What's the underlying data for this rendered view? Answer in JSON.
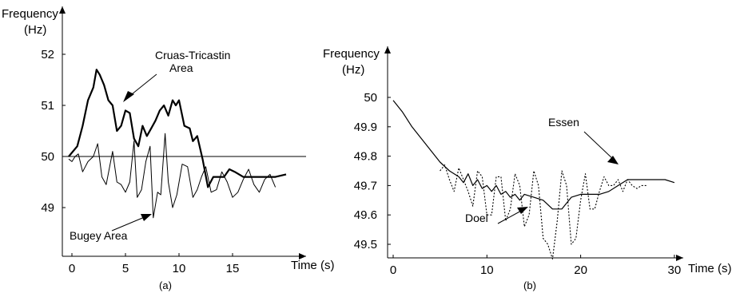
{
  "chart_data": [
    {
      "type": "line",
      "caption": "(a)",
      "ylabel": "Frequency",
      "ylabel_unit": "(Hz)",
      "xlabel": "Time (s)",
      "xticks": [
        0,
        5,
        10,
        15
      ],
      "yticks": [
        49,
        50,
        51,
        52
      ],
      "xlim": [
        -1,
        20.5
      ],
      "ylim": [
        48.0,
        52.5
      ],
      "reference_line": 50,
      "annotations": [
        {
          "text": "Cruas-Tricastin",
          "line": 1
        },
        {
          "text": "Area",
          "line": 2
        },
        {
          "text": "Bugey Area",
          "line": 1
        }
      ],
      "series": [
        {
          "style": "thick",
          "points": [
            [
              -0.3,
              50.0
            ],
            [
              0.5,
              50.2
            ],
            [
              1.0,
              50.6
            ],
            [
              1.5,
              51.1
            ],
            [
              2.0,
              51.35
            ],
            [
              2.3,
              51.7
            ],
            [
              2.6,
              51.6
            ],
            [
              3.0,
              51.4
            ],
            [
              3.4,
              51.1
            ],
            [
              3.8,
              51.0
            ],
            [
              4.2,
              50.5
            ],
            [
              4.6,
              50.6
            ],
            [
              5.0,
              50.9
            ],
            [
              5.4,
              50.85
            ],
            [
              5.8,
              50.35
            ],
            [
              6.2,
              50.2
            ],
            [
              6.6,
              50.6
            ],
            [
              7.0,
              50.4
            ],
            [
              7.4,
              50.55
            ],
            [
              7.8,
              50.7
            ],
            [
              8.2,
              50.9
            ],
            [
              8.6,
              51.0
            ],
            [
              9.0,
              50.8
            ],
            [
              9.4,
              51.1
            ],
            [
              9.7,
              51.0
            ],
            [
              10.0,
              51.1
            ],
            [
              10.5,
              50.6
            ],
            [
              11.0,
              50.55
            ],
            [
              11.3,
              50.3
            ],
            [
              11.7,
              50.4
            ],
            [
              12.2,
              49.95
            ],
            [
              12.7,
              49.4
            ],
            [
              13.2,
              49.6
            ],
            [
              13.7,
              49.6
            ],
            [
              14.2,
              49.6
            ],
            [
              14.7,
              49.75
            ],
            [
              15.2,
              49.7
            ],
            [
              16.0,
              49.6
            ],
            [
              17.0,
              49.6
            ],
            [
              18.0,
              49.6
            ],
            [
              19.0,
              49.6
            ],
            [
              20.0,
              49.65
            ]
          ]
        },
        {
          "style": "thin",
          "points": [
            [
              -0.3,
              49.95
            ],
            [
              0.0,
              49.9
            ],
            [
              0.3,
              50.0
            ],
            [
              0.6,
              50.05
            ],
            [
              1.0,
              49.7
            ],
            [
              1.5,
              49.9
            ],
            [
              2.0,
              50.0
            ],
            [
              2.4,
              50.25
            ],
            [
              2.8,
              49.6
            ],
            [
              3.2,
              49.45
            ],
            [
              3.8,
              50.1
            ],
            [
              4.2,
              49.5
            ],
            [
              4.6,
              49.45
            ],
            [
              5.0,
              49.3
            ],
            [
              5.4,
              49.5
            ],
            [
              5.8,
              50.3
            ],
            [
              6.1,
              49.2
            ],
            [
              6.5,
              49.35
            ],
            [
              6.9,
              49.9
            ],
            [
              7.3,
              50.2
            ],
            [
              7.6,
              48.8
            ],
            [
              8.0,
              49.3
            ],
            [
              8.3,
              49.25
            ],
            [
              8.7,
              50.45
            ],
            [
              9.0,
              49.5
            ],
            [
              9.4,
              49.0
            ],
            [
              9.8,
              49.25
            ],
            [
              10.3,
              49.85
            ],
            [
              10.8,
              49.8
            ],
            [
              11.3,
              49.2
            ],
            [
              11.7,
              49.35
            ],
            [
              12.1,
              49.6
            ],
            [
              12.5,
              49.8
            ],
            [
              13.0,
              49.3
            ],
            [
              13.5,
              49.35
            ],
            [
              14.0,
              49.7
            ],
            [
              14.5,
              49.5
            ],
            [
              15.0,
              49.2
            ],
            [
              15.5,
              49.3
            ],
            [
              16.0,
              49.55
            ],
            [
              16.5,
              49.75
            ],
            [
              17.0,
              49.45
            ],
            [
              17.5,
              49.3
            ],
            [
              18.0,
              49.55
            ],
            [
              18.5,
              49.65
            ],
            [
              19.0,
              49.4
            ]
          ]
        }
      ]
    },
    {
      "type": "line",
      "caption": "(b)",
      "ylabel": "Frequency",
      "ylabel_unit": "(Hz)",
      "xlabel": "Time (s)",
      "xticks": [
        0,
        10,
        20,
        30
      ],
      "yticks": [
        49.5,
        49.6,
        49.7,
        49.8,
        49.9,
        50
      ],
      "xlim": [
        -0.5,
        31.5
      ],
      "ylim": [
        49.38,
        50.06
      ],
      "annotations": [
        {
          "text": "Essen"
        },
        {
          "text": "Doel"
        }
      ],
      "series": [
        {
          "style": "solid",
          "points": [
            [
              0,
              49.99
            ],
            [
              1,
              49.95
            ],
            [
              2,
              49.9
            ],
            [
              3,
              49.86
            ],
            [
              4,
              49.82
            ],
            [
              5,
              49.78
            ],
            [
              6,
              49.75
            ],
            [
              7,
              49.73
            ],
            [
              7.5,
              49.71
            ],
            [
              8,
              49.74
            ],
            [
              8.5,
              49.7
            ],
            [
              9,
              49.72
            ],
            [
              9.5,
              49.69
            ],
            [
              10,
              49.7
            ],
            [
              10.5,
              49.68
            ],
            [
              11,
              49.7
            ],
            [
              11.5,
              49.67
            ],
            [
              12,
              49.68
            ],
            [
              12.5,
              49.66
            ],
            [
              13,
              49.67
            ],
            [
              13.5,
              49.65
            ],
            [
              14,
              49.67
            ],
            [
              15,
              49.66
            ],
            [
              16,
              49.65
            ],
            [
              17,
              49.62
            ],
            [
              18,
              49.62
            ],
            [
              19,
              49.66
            ],
            [
              20,
              49.67
            ],
            [
              21,
              49.67
            ],
            [
              22,
              49.67
            ],
            [
              23,
              49.68
            ],
            [
              24,
              49.7
            ],
            [
              25,
              49.72
            ],
            [
              26,
              49.72
            ],
            [
              27,
              49.72
            ],
            [
              28,
              49.72
            ],
            [
              29,
              49.72
            ],
            [
              30,
              49.71
            ]
          ]
        },
        {
          "style": "dotted",
          "points": [
            [
              5,
              49.75
            ],
            [
              5.5,
              49.77
            ],
            [
              6,
              49.72
            ],
            [
              6.5,
              49.68
            ],
            [
              7,
              49.76
            ],
            [
              7.5,
              49.72
            ],
            [
              8,
              49.68
            ],
            [
              8.5,
              49.63
            ],
            [
              9,
              49.75
            ],
            [
              9.5,
              49.73
            ],
            [
              10,
              49.6
            ],
            [
              10.5,
              49.6
            ],
            [
              11,
              49.73
            ],
            [
              11.5,
              49.73
            ],
            [
              12,
              49.58
            ],
            [
              12.5,
              49.62
            ],
            [
              13,
              49.74
            ],
            [
              13.5,
              49.7
            ],
            [
              14,
              49.56
            ],
            [
              14.5,
              49.6
            ],
            [
              15,
              49.75
            ],
            [
              15.5,
              49.7
            ],
            [
              16,
              49.52
            ],
            [
              16.5,
              49.5
            ],
            [
              17,
              49.45
            ],
            [
              17.5,
              49.58
            ],
            [
              18,
              49.75
            ],
            [
              18.5,
              49.7
            ],
            [
              19,
              49.5
            ],
            [
              19.5,
              49.52
            ],
            [
              20,
              49.65
            ],
            [
              20.5,
              49.74
            ],
            [
              21,
              49.62
            ],
            [
              21.5,
              49.62
            ],
            [
              22,
              49.68
            ],
            [
              22.5,
              49.73
            ],
            [
              23,
              49.7
            ],
            [
              23.5,
              49.7
            ],
            [
              24,
              49.72
            ],
            [
              24.5,
              49.68
            ],
            [
              25,
              49.72
            ],
            [
              25.5,
              49.7
            ],
            [
              26,
              49.69
            ],
            [
              26.5,
              49.7
            ],
            [
              27,
              49.7
            ]
          ]
        }
      ]
    }
  ]
}
